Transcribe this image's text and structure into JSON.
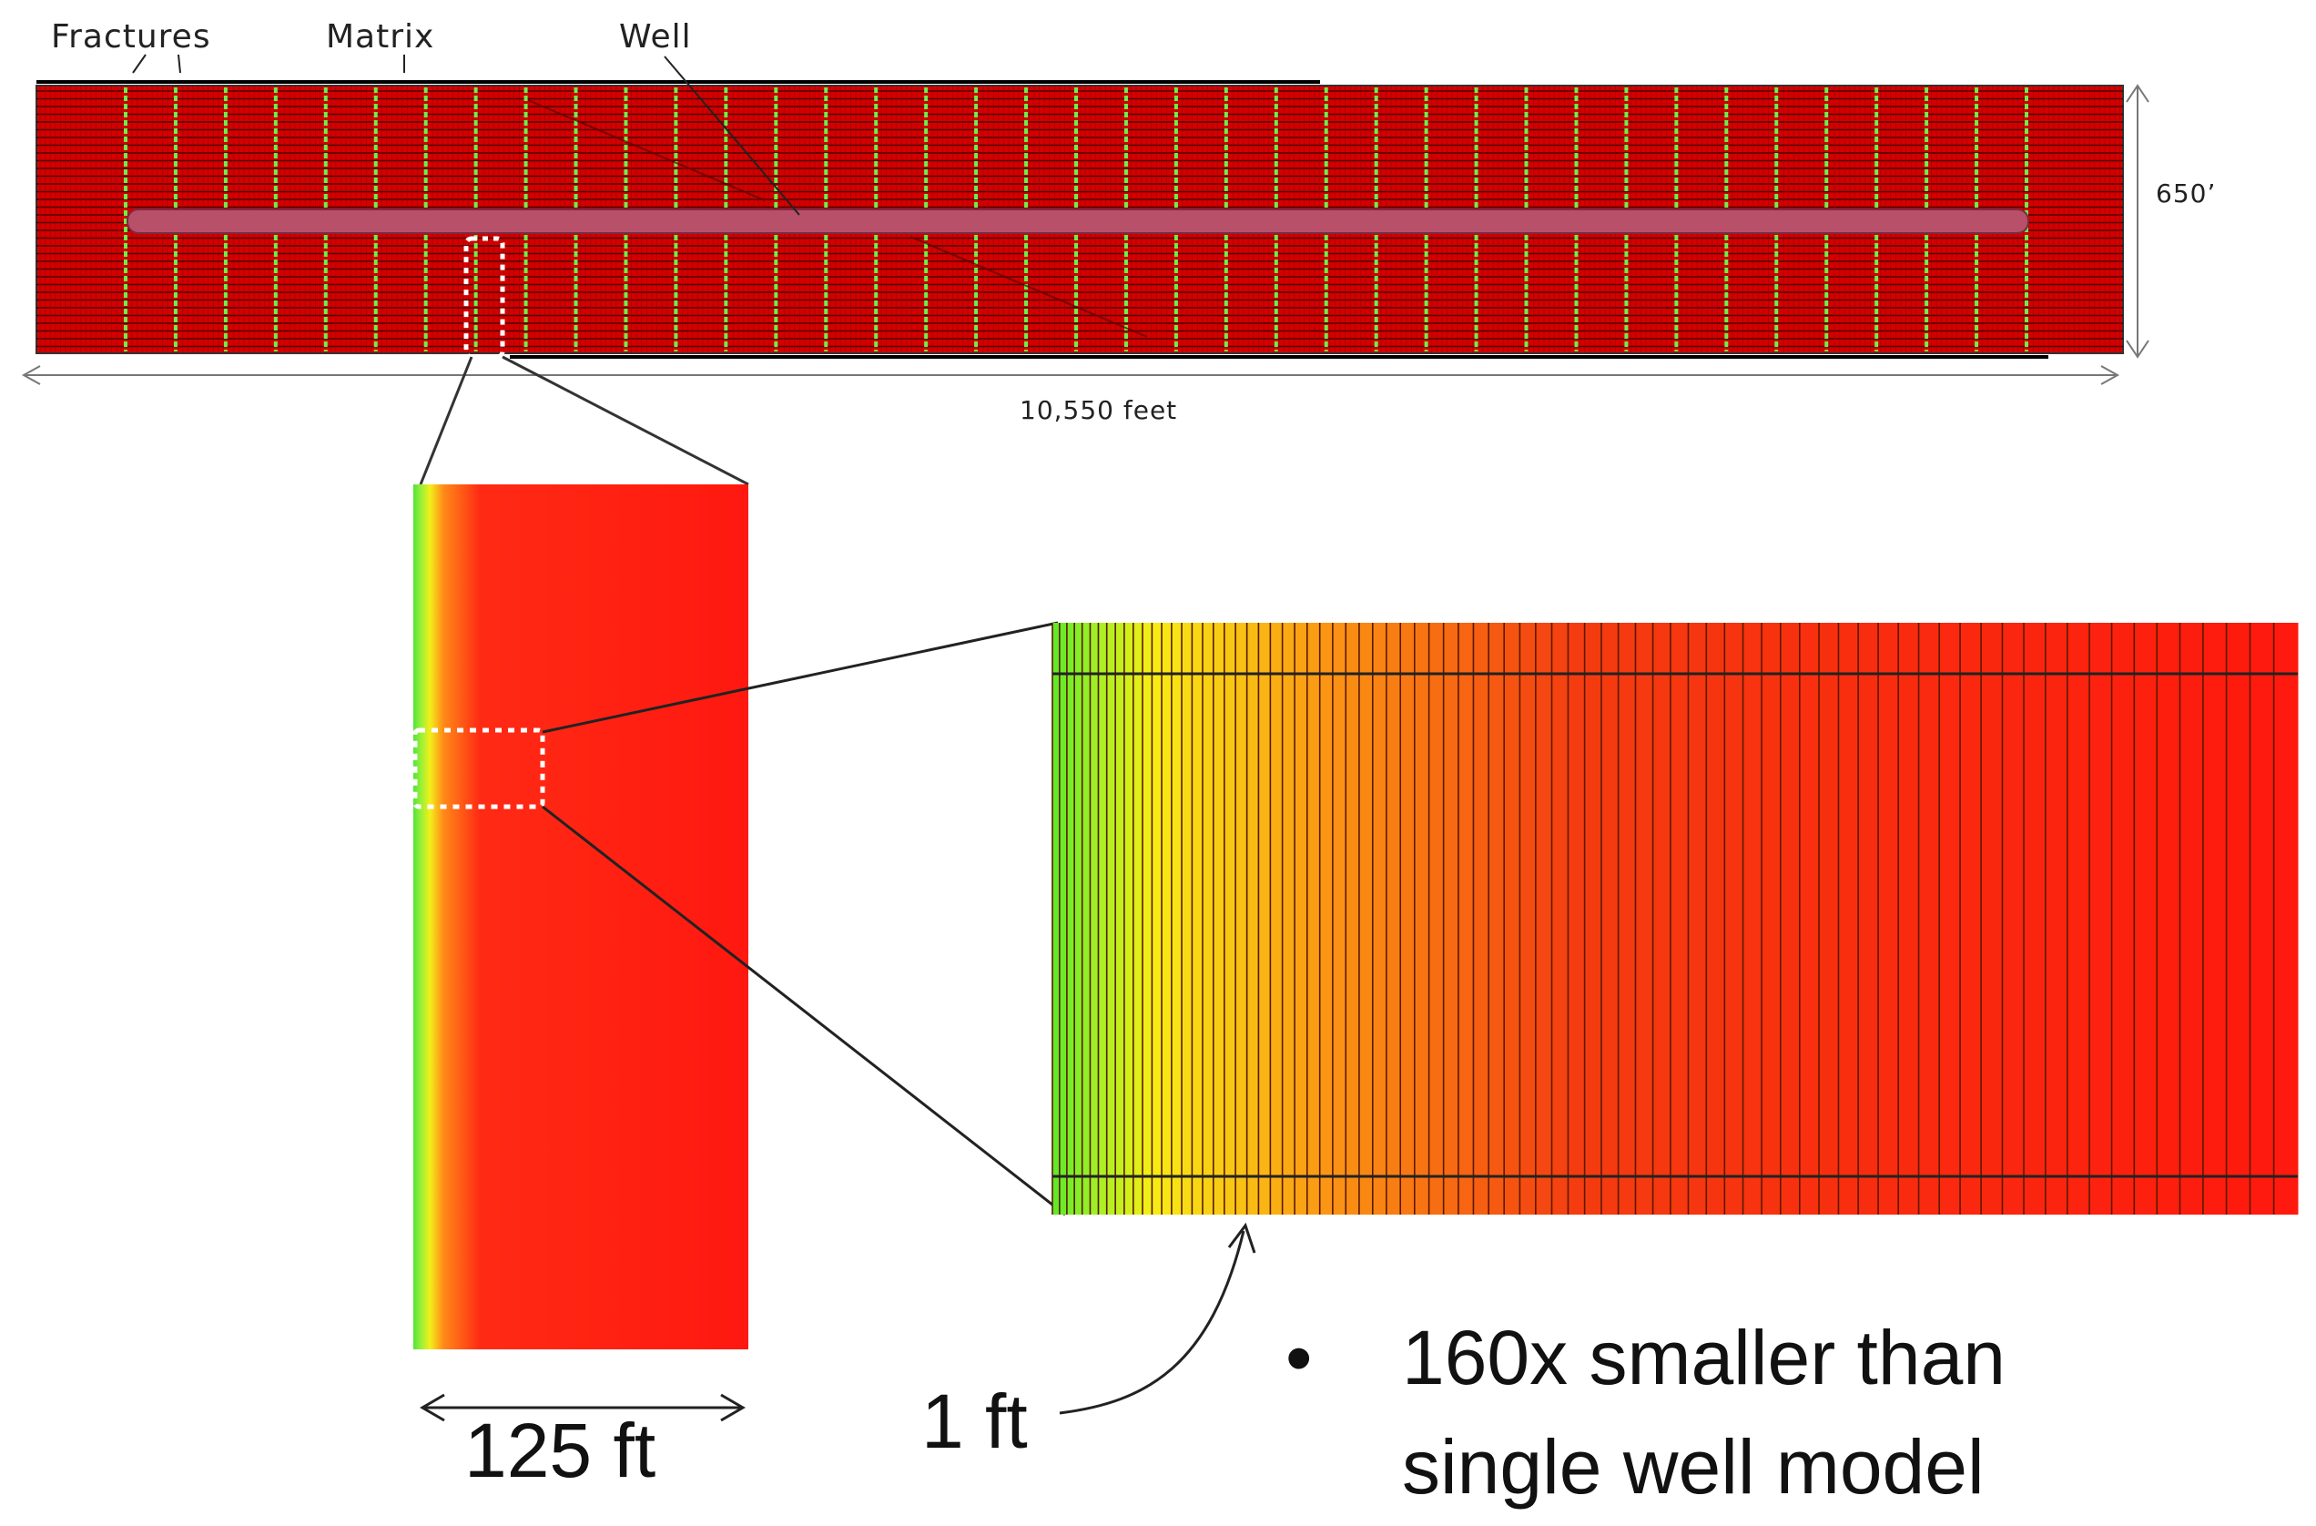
{
  "labels": {
    "fractures": "Fractures",
    "matrix": "Matrix",
    "well": "Well",
    "height": "650’",
    "length": "10,550 feet",
    "fracture_spacing": "125 ft",
    "cell_width": "1 ft"
  },
  "note": {
    "bullet": "•",
    "line1": "160x smaller than",
    "line2": "single well model"
  },
  "colors": {
    "matrix": "#d40000",
    "grid_line": "#4a0000",
    "fracture": "#6cf04a",
    "well": "#b8506a",
    "hot": "#ff1a10",
    "warm": "#f7ee10",
    "cool": "#5cf02a"
  },
  "counts": {
    "fractures": 39,
    "fine_cells": 80
  }
}
